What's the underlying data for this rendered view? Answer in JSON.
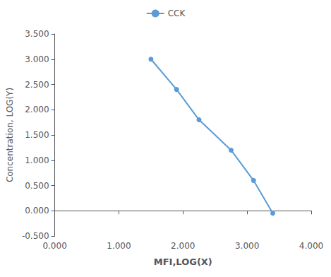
{
  "chart_data": {
    "type": "line",
    "x": [
      1.5,
      1.9,
      2.25,
      2.75,
      3.1,
      3.4
    ],
    "series": [
      {
        "name": "CCK",
        "color": "#5B9BD5",
        "marker": "circle",
        "values": [
          3.0,
          2.4,
          1.8,
          1.2,
          0.6,
          -0.05
        ]
      }
    ],
    "xlabel": "MFI,LOG(X)",
    "ylabel": "Concentration, LOG(Y)",
    "xlim": [
      0.0,
      4.0
    ],
    "ylim": [
      -0.5,
      3.5
    ],
    "xticks": [
      {
        "value": 0,
        "label": "0.000"
      },
      {
        "value": 1,
        "label": "1.000"
      },
      {
        "value": 2,
        "label": "2.000"
      },
      {
        "value": 3,
        "label": "3.000"
      },
      {
        "value": 4,
        "label": "4.000"
      }
    ],
    "yticks": [
      {
        "value": -0.5,
        "label": "-0.500"
      },
      {
        "value": 0,
        "label": "0.000"
      },
      {
        "value": 0.5,
        "label": "0.500"
      },
      {
        "value": 1,
        "label": "1.000"
      },
      {
        "value": 1.5,
        "label": "1.500"
      },
      {
        "value": 2,
        "label": "2.000"
      },
      {
        "value": 2.5,
        "label": "2.500"
      },
      {
        "value": 3,
        "label": "3.000"
      },
      {
        "value": 3.5,
        "label": "3.500"
      }
    ],
    "grid": false,
    "legend": "upper center"
  }
}
